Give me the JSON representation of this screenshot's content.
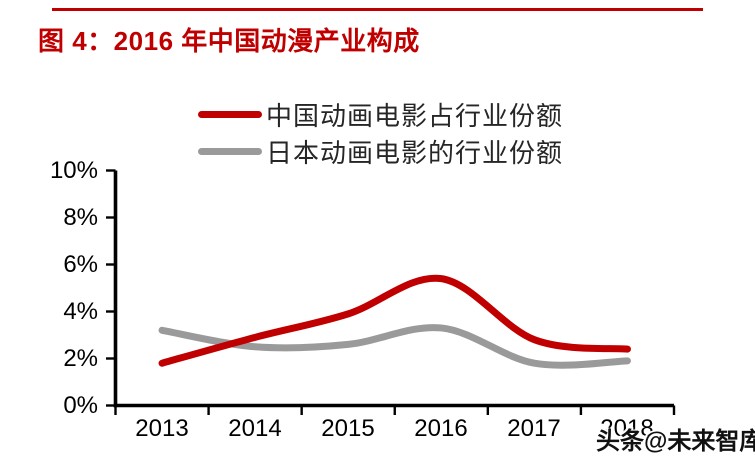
{
  "header": {
    "title": "图 4：2016 年中国动漫产业构成",
    "accent_color": "#c00000"
  },
  "watermark": {
    "text": "头条@未来智库"
  },
  "chart_data": {
    "type": "line",
    "smooth": true,
    "categories": [
      "2013",
      "2014",
      "2015",
      "2016",
      "2017",
      "2018"
    ],
    "series": [
      {
        "name": "中国动画电影占行业份额",
        "color": "#c00000",
        "values": [
          1.8,
          2.9,
          3.9,
          5.4,
          2.8,
          2.4
        ]
      },
      {
        "name": "日本动画电影的行业份额",
        "color": "#9a9a9a",
        "values": [
          3.2,
          2.5,
          2.6,
          3.3,
          1.8,
          1.9
        ]
      }
    ],
    "unit": "%",
    "ylim": [
      0,
      10
    ],
    "ytick_step": 2,
    "ytick_labels": [
      "10%",
      "8%",
      "6%",
      "4%",
      "2%",
      "0%"
    ],
    "xlabel": "",
    "ylabel": "",
    "grid": false,
    "legend_position": "top-center",
    "axis_color": "#000000"
  }
}
